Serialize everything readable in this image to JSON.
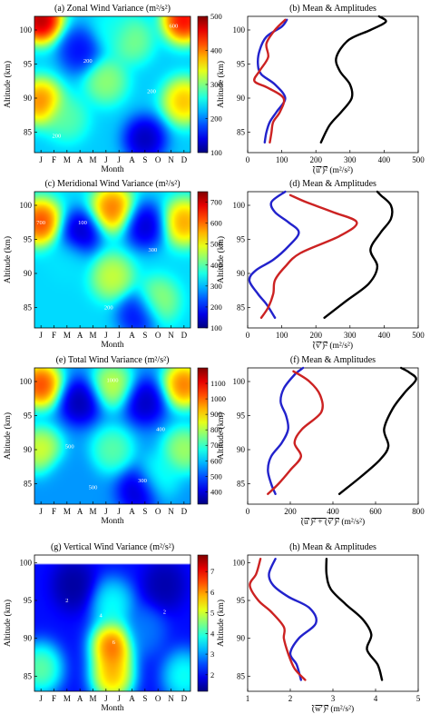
{
  "chart_data": [
    {
      "id": "a",
      "type": "heatmap",
      "title": "(a) Zonal Wind Variance (m²/s²)",
      "xlabel": "Month",
      "ylabel": "Altitude (km)",
      "x_ticks": [
        "J",
        "F",
        "M",
        "A",
        "M",
        "J",
        "J",
        "A",
        "S",
        "O",
        "N",
        "D"
      ],
      "y_ticks": [
        85,
        90,
        95,
        100
      ],
      "ylim": [
        82,
        102
      ],
      "colorbar": {
        "min": 100,
        "max": 500,
        "ticks": [
          100,
          200,
          300,
          400,
          500
        ]
      },
      "contour_labels": [
        {
          "text": "600",
          "month": 11.2,
          "alt": 100.6
        },
        {
          "text": "200",
          "month": 4.6,
          "alt": 95.5
        },
        {
          "text": "200",
          "month": 9.5,
          "alt": 91.0
        },
        {
          "text": "200",
          "month": 2.2,
          "alt": 84.5
        }
      ],
      "blobs": [
        {
          "month": 1.0,
          "alt": 101.5,
          "value": 560
        },
        {
          "month": 12.0,
          "alt": 101.5,
          "value": 520
        },
        {
          "month": 1.0,
          "alt": 89.5,
          "value": 450
        },
        {
          "month": 12.0,
          "alt": 89.5,
          "value": 420
        },
        {
          "month": 6.0,
          "alt": 92.5,
          "value": 330
        },
        {
          "month": 8.0,
          "alt": 98.5,
          "value": 320
        },
        {
          "month": 3.0,
          "alt": 87.0,
          "value": 300
        },
        {
          "month": 4.0,
          "alt": 97.0,
          "value": 130
        },
        {
          "month": 9.0,
          "alt": 84.0,
          "value": 90
        },
        {
          "month": 6.5,
          "alt": 100.0,
          "value": 260
        }
      ],
      "base": 230
    },
    {
      "id": "b",
      "type": "line",
      "title": "(b) Mean & Amplitudes",
      "ylabel": "Altitude (km)",
      "xlabel_parts": [
        "(u′)²",
        "  (m²/s²)"
      ],
      "xlim": [
        0,
        500
      ],
      "x_ticks": [
        0,
        100,
        200,
        300,
        400,
        500
      ],
      "ylim": [
        82,
        102
      ],
      "y_ticks": [
        85,
        90,
        95,
        100
      ],
      "series": [
        {
          "color": "#000000",
          "points": [
            [
              215,
              83.5
            ],
            [
              240,
              86
            ],
            [
              275,
              88
            ],
            [
              305,
              90
            ],
            [
              300,
              92
            ],
            [
              270,
              94
            ],
            [
              260,
              96
            ],
            [
              295,
              98.5
            ],
            [
              360,
              100
            ],
            [
              405,
              101.2
            ],
            [
              385,
              102
            ]
          ]
        },
        {
          "color": "#2222cc",
          "points": [
            [
              50,
              83.5
            ],
            [
              55,
              85
            ],
            [
              65,
              86.5
            ],
            [
              85,
              88
            ],
            [
              110,
              90
            ],
            [
              80,
              92
            ],
            [
              40,
              93.5
            ],
            [
              30,
              95
            ],
            [
              35,
              97
            ],
            [
              55,
              99
            ],
            [
              100,
              100.5
            ],
            [
              115,
              101.5
            ]
          ]
        },
        {
          "color": "#cc2222",
          "points": [
            [
              65,
              83.5
            ],
            [
              70,
              85
            ],
            [
              75,
              86.5
            ],
            [
              95,
              88
            ],
            [
              105,
              90
            ],
            [
              60,
              91.5
            ],
            [
              20,
              92.5
            ],
            [
              35,
              94
            ],
            [
              60,
              96
            ],
            [
              55,
              98
            ],
            [
              80,
              100
            ],
            [
              110,
              101.5
            ]
          ]
        }
      ]
    },
    {
      "id": "c",
      "type": "heatmap",
      "title": "(c) Meridional Wind Variance (m²/s²)",
      "xlabel": "Month",
      "ylabel": "Altitude (km)",
      "x_ticks": [
        "J",
        "F",
        "M",
        "A",
        "M",
        "J",
        "J",
        "A",
        "S",
        "O",
        "N",
        "D"
      ],
      "y_ticks": [
        85,
        90,
        95,
        100
      ],
      "ylim": [
        82,
        102
      ],
      "colorbar": {
        "min": 100,
        "max": 750,
        "ticks": [
          100,
          200,
          300,
          400,
          500,
          600,
          700
        ]
      },
      "contour_labels": [
        {
          "text": "700",
          "month": 1.0,
          "alt": 97.5
        },
        {
          "text": "100",
          "month": 4.2,
          "alt": 97.5
        },
        {
          "text": "300",
          "month": 9.6,
          "alt": 93.5
        },
        {
          "text": "200",
          "month": 6.2,
          "alt": 85.0
        }
      ],
      "blobs": [
        {
          "month": 1.0,
          "alt": 97.5,
          "value": 720
        },
        {
          "month": 12.0,
          "alt": 97.5,
          "value": 640
        },
        {
          "month": 6.5,
          "alt": 99.5,
          "value": 680
        },
        {
          "month": 6.5,
          "alt": 89.5,
          "value": 520
        },
        {
          "month": 10.0,
          "alt": 86.0,
          "value": 480
        },
        {
          "month": 3.0,
          "alt": 92.0,
          "value": 330
        },
        {
          "month": 4.0,
          "alt": 96.0,
          "value": 90
        },
        {
          "month": 9.0,
          "alt": 97.0,
          "value": 100
        },
        {
          "month": 8.5,
          "alt": 84.0,
          "value": 140
        }
      ],
      "base": 320
    },
    {
      "id": "d",
      "type": "line",
      "title": "(d) Mean & Amplitudes",
      "ylabel": "Altitude (km)",
      "xlabel_parts": [
        "(v′)²",
        "  (m²/s²)"
      ],
      "xlim": [
        0,
        500
      ],
      "x_ticks": [
        0,
        100,
        200,
        300,
        400,
        500
      ],
      "ylim": [
        82,
        102
      ],
      "y_ticks": [
        85,
        90,
        95,
        100
      ],
      "series": [
        {
          "color": "#000000",
          "points": [
            [
              225,
              83.5
            ],
            [
              290,
              86
            ],
            [
              355,
              88.5
            ],
            [
              380,
              91
            ],
            [
              360,
              93.5
            ],
            [
              390,
              96
            ],
            [
              420,
              98
            ],
            [
              420,
              100
            ],
            [
              390,
              101.5
            ],
            [
              380,
              102
            ]
          ]
        },
        {
          "color": "#2222cc",
          "points": [
            [
              80,
              83.5
            ],
            [
              55,
              85.5
            ],
            [
              30,
              87
            ],
            [
              5,
              89
            ],
            [
              25,
              90.5
            ],
            [
              75,
              92
            ],
            [
              120,
              94
            ],
            [
              150,
              96
            ],
            [
              120,
              97.5
            ],
            [
              80,
              99
            ],
            [
              70,
              100.5
            ],
            [
              110,
              102
            ]
          ]
        },
        {
          "color": "#cc2222",
          "points": [
            [
              40,
              83.5
            ],
            [
              60,
              85
            ],
            [
              75,
              87
            ],
            [
              80,
              89
            ],
            [
              110,
              91
            ],
            [
              155,
              93
            ],
            [
              270,
              95.5
            ],
            [
              320,
              97.5
            ],
            [
              250,
              99
            ],
            [
              170,
              100.5
            ],
            [
              125,
              101.5
            ]
          ]
        }
      ]
    },
    {
      "id": "e",
      "type": "heatmap",
      "title": "(e) Total Wind Variance (m²/s²)",
      "xlabel": "Month",
      "ylabel": "Altitude (km)",
      "x_ticks": [
        "J",
        "F",
        "M",
        "A",
        "M",
        "J",
        "J",
        "A",
        "S",
        "O",
        "N",
        "D"
      ],
      "y_ticks": [
        85,
        90,
        95,
        100
      ],
      "ylim": [
        82,
        102
      ],
      "colorbar": {
        "min": 320,
        "max": 1200,
        "ticks": [
          400,
          500,
          600,
          700,
          800,
          900,
          1000,
          1100
        ]
      },
      "contour_labels": [
        {
          "text": "1000",
          "month": 6.5,
          "alt": 100.2
        },
        {
          "text": "500",
          "month": 3.2,
          "alt": 90.5
        },
        {
          "text": "400",
          "month": 10.2,
          "alt": 93.0
        },
        {
          "text": "300",
          "month": 8.8,
          "alt": 85.5
        },
        {
          "text": "500",
          "month": 5.0,
          "alt": 84.5
        }
      ],
      "blobs": [
        {
          "month": 1.0,
          "alt": 99.5,
          "value": 1180
        },
        {
          "month": 12.0,
          "alt": 99.5,
          "value": 1120
        },
        {
          "month": 1.0,
          "alt": 90.0,
          "value": 920
        },
        {
          "month": 12.0,
          "alt": 90.0,
          "value": 860
        },
        {
          "month": 6.5,
          "alt": 99.5,
          "value": 900
        },
        {
          "month": 6.5,
          "alt": 90.0,
          "value": 780
        },
        {
          "month": 10.0,
          "alt": 86.0,
          "value": 700
        },
        {
          "month": 4.0,
          "alt": 97.0,
          "value": 300
        },
        {
          "month": 9.0,
          "alt": 97.0,
          "value": 320
        },
        {
          "month": 8.5,
          "alt": 84.0,
          "value": 330
        },
        {
          "month": 3.0,
          "alt": 86.0,
          "value": 560
        }
      ],
      "base": 560
    },
    {
      "id": "f",
      "type": "line",
      "title": "(f) Mean & Amplitudes",
      "ylabel": "Altitude (km)",
      "xlabel_parts": [
        "(u′)² + (v′)²",
        "  (m²/s²)"
      ],
      "xlim": [
        0,
        800
      ],
      "x_ticks": [
        0,
        200,
        400,
        600,
        800
      ],
      "ylim": [
        82,
        102
      ],
      "y_ticks": [
        85,
        90,
        95,
        100
      ],
      "series": [
        {
          "color": "#000000",
          "points": [
            [
              430,
              83.5
            ],
            [
              530,
              86
            ],
            [
              620,
              88.5
            ],
            [
              660,
              90.5
            ],
            [
              640,
              93
            ],
            [
              680,
              96
            ],
            [
              740,
              98.5
            ],
            [
              790,
              100.3
            ],
            [
              760,
              101.3
            ],
            [
              720,
              102
            ]
          ]
        },
        {
          "color": "#2222cc",
          "points": [
            [
              130,
              83.5
            ],
            [
              110,
              85
            ],
            [
              95,
              87
            ],
            [
              110,
              89
            ],
            [
              160,
              91
            ],
            [
              190,
              93
            ],
            [
              180,
              95
            ],
            [
              155,
              97
            ],
            [
              170,
              99
            ],
            [
              220,
              101
            ],
            [
              260,
              102
            ]
          ]
        },
        {
          "color": "#cc2222",
          "points": [
            [
              95,
              83.5
            ],
            [
              145,
              85
            ],
            [
              200,
              87
            ],
            [
              250,
              89
            ],
            [
              220,
              91
            ],
            [
              255,
              93
            ],
            [
              345,
              95.5
            ],
            [
              340,
              98
            ],
            [
              290,
              100
            ],
            [
              215,
              101.5
            ]
          ]
        }
      ]
    },
    {
      "id": "g",
      "type": "heatmap",
      "title": "(g) Vertical Wind Variance (m²/s²)",
      "xlabel": "Month",
      "ylabel": "Altitude (km)",
      "x_ticks": [
        "J",
        "F",
        "M",
        "A",
        "M",
        "J",
        "J",
        "A",
        "S",
        "O",
        "N",
        "D"
      ],
      "y_ticks": [
        85,
        90,
        95,
        100
      ],
      "ylim": [
        83,
        101
      ],
      "data_top": 99.8,
      "colorbar": {
        "min": 1.2,
        "max": 7.8,
        "ticks": [
          2,
          3,
          4,
          5,
          6,
          7
        ]
      },
      "contour_labels": [
        {
          "text": "6",
          "month": 6.6,
          "alt": 89.5
        },
        {
          "text": "4",
          "month": 5.6,
          "alt": 93.0
        },
        {
          "text": "2",
          "month": 3.0,
          "alt": 95.0
        },
        {
          "text": "2",
          "month": 10.5,
          "alt": 93.5
        }
      ],
      "blobs": [
        {
          "month": 6.5,
          "alt": 89.0,
          "value": 7.6
        },
        {
          "month": 6.5,
          "alt": 85.0,
          "value": 6.8
        },
        {
          "month": 6.5,
          "alt": 94.5,
          "value": 4.2
        },
        {
          "month": 1.0,
          "alt": 86.0,
          "value": 5.0
        },
        {
          "month": 12.0,
          "alt": 85.0,
          "value": 4.3
        },
        {
          "month": 9.0,
          "alt": 91.0,
          "value": 3.0
        },
        {
          "month": 3.5,
          "alt": 97.0,
          "value": 1.2
        },
        {
          "month": 10.5,
          "alt": 97.0,
          "value": 1.3
        }
      ],
      "base": 2.1
    },
    {
      "id": "h",
      "type": "line",
      "title": "(h) Mean & Amplitudes",
      "ylabel": "Altitude (km)",
      "xlabel_parts": [
        "(w′)²",
        "  (m²/s²)"
      ],
      "xlim": [
        1,
        5
      ],
      "x_ticks": [
        1,
        2,
        3,
        4,
        5
      ],
      "ylim": [
        83,
        101
      ],
      "y_ticks": [
        85,
        90,
        95,
        100
      ],
      "series": [
        {
          "color": "#000000",
          "points": [
            [
              4.15,
              84.5
            ],
            [
              4.05,
              86.5
            ],
            [
              3.8,
              88.5
            ],
            [
              3.9,
              90.5
            ],
            [
              3.7,
              92.5
            ],
            [
              3.3,
              94.5
            ],
            [
              2.95,
              96.5
            ],
            [
              2.85,
              98.5
            ],
            [
              2.85,
              100.5
            ]
          ]
        },
        {
          "color": "#2222cc",
          "points": [
            [
              2.25,
              84.5
            ],
            [
              2.15,
              86.5
            ],
            [
              2.0,
              88
            ],
            [
              2.2,
              90
            ],
            [
              2.6,
              92
            ],
            [
              2.45,
              94
            ],
            [
              1.95,
              95.5
            ],
            [
              1.6,
              97
            ],
            [
              1.5,
              98.5
            ],
            [
              1.65,
              100.5
            ]
          ]
        },
        {
          "color": "#cc2222",
          "points": [
            [
              2.35,
              84.5
            ],
            [
              2.1,
              86
            ],
            [
              1.95,
              88
            ],
            [
              1.85,
              90
            ],
            [
              1.85,
              91.5
            ],
            [
              1.55,
              93.5
            ],
            [
              1.25,
              95
            ],
            [
              1.05,
              97
            ],
            [
              1.2,
              98.5
            ],
            [
              1.3,
              100.5
            ]
          ]
        }
      ]
    }
  ]
}
